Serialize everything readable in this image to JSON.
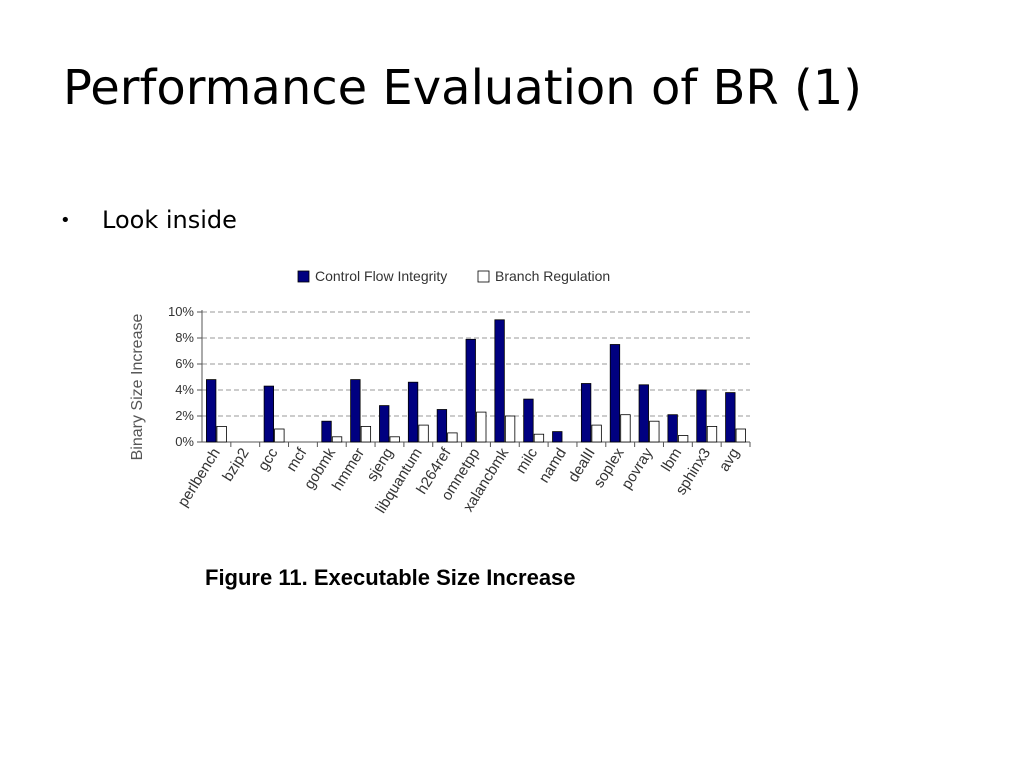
{
  "slide": {
    "title": "Performance Evaluation of BR (1)",
    "bullets": [
      "Look inside"
    ]
  },
  "chart_data": {
    "type": "bar",
    "title": "",
    "caption": "Figure 11. Executable Size Increase",
    "xlabel": "",
    "ylabel": "Binary Size Increase",
    "ylim": [
      0,
      10
    ],
    "yticks": [
      0,
      2,
      4,
      6,
      8,
      10
    ],
    "ytick_labels": [
      "0%",
      "2%",
      "4%",
      "6%",
      "8%",
      "10%"
    ],
    "grid": true,
    "legend_position": "top",
    "categories": [
      "perlbench",
      "bzip2",
      "gcc",
      "mcf",
      "gobmk",
      "hmmer",
      "sjeng",
      "libquantum",
      "h264ref",
      "omnetpp",
      "xalancbmk",
      "milc",
      "namd",
      "dealII",
      "soplex",
      "povray",
      "lbm",
      "sphinx3",
      "avg"
    ],
    "series": [
      {
        "name": "Control Flow Integrity",
        "color": "#000080",
        "values": [
          4.8,
          0,
          4.3,
          0,
          1.6,
          4.8,
          2.8,
          4.6,
          2.5,
          7.9,
          9.4,
          3.3,
          0.8,
          4.5,
          7.5,
          4.4,
          2.1,
          4.0,
          3.8
        ]
      },
      {
        "name": "Branch Regulation",
        "color": "#ffffff",
        "values": [
          1.2,
          0,
          1.0,
          0,
          0.4,
          1.2,
          0.4,
          1.3,
          0.7,
          2.3,
          2.0,
          0.6,
          0,
          1.3,
          2.1,
          1.6,
          0.5,
          1.2,
          1.0
        ]
      }
    ]
  }
}
